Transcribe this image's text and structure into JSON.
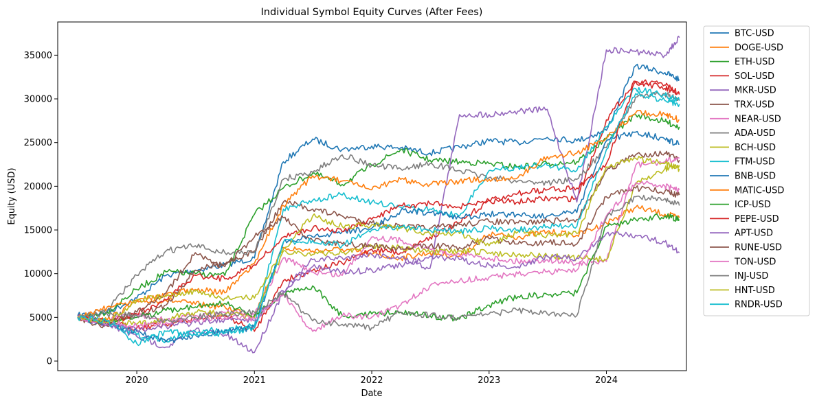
{
  "chart_data": {
    "type": "line",
    "title": "Individual Symbol Equity Curves (After Fees)",
    "xlabel": "Date",
    "ylabel": "Equity (USD)",
    "x_ticks": [
      "2020",
      "2021",
      "2022",
      "2023",
      "2024"
    ],
    "y_ticks": [
      "0",
      "5000",
      "10000",
      "15000",
      "20000",
      "25000",
      "30000",
      "35000"
    ],
    "xlim": [
      "2019-04-30",
      "2024-09-06"
    ],
    "ylim": [
      -1100,
      38800
    ],
    "grid": false,
    "legend_position": "outside-right",
    "x": [
      "2019-07-01",
      "2019-10-01",
      "2020-01-01",
      "2020-04-01",
      "2020-07-01",
      "2020-10-01",
      "2021-01-01",
      "2021-04-01",
      "2021-07-01",
      "2021-10-01",
      "2022-01-01",
      "2022-04-01",
      "2022-07-01",
      "2022-10-01",
      "2023-01-01",
      "2023-04-01",
      "2023-07-01",
      "2023-10-01",
      "2024-01-01",
      "2024-04-01",
      "2024-07-01",
      "2024-08-15"
    ],
    "series": [
      {
        "name": "BTC-USD",
        "color": "#1f77b4",
        "values": [
          5200,
          5600,
          7200,
          9800,
          10400,
          11000,
          11800,
          22800,
          25400,
          24200,
          24600,
          24400,
          23800,
          24500,
          25200,
          25000,
          25600,
          25200,
          26400,
          33800,
          33000,
          32200
        ]
      },
      {
        "name": "DOGE-USD",
        "color": "#ff7f0e",
        "values": [
          5000,
          4700,
          6800,
          7000,
          6500,
          6200,
          5200,
          13000,
          12600,
          12800,
          12200,
          11800,
          12400,
          12000,
          14500,
          14200,
          14800,
          14400,
          15800,
          17600,
          16800,
          16400
        ]
      },
      {
        "name": "ETH-USD",
        "color": "#2ca02c",
        "values": [
          5000,
          5600,
          8200,
          10200,
          10000,
          9800,
          16800,
          19800,
          21500,
          20200,
          22400,
          24200,
          23000,
          22800,
          22600,
          22200,
          22600,
          22800,
          25400,
          28200,
          27400,
          26800
        ]
      },
      {
        "name": "SOL-USD",
        "color": "#d62728",
        "values": [
          5000,
          4400,
          3800,
          4200,
          4800,
          5200,
          3400,
          9200,
          10400,
          11200,
          12800,
          12400,
          14200,
          15800,
          18400,
          18200,
          18600,
          18600,
          27600,
          32000,
          31200,
          30500
        ]
      },
      {
        "name": "MKR-USD",
        "color": "#9467bd",
        "values": [
          4900,
          4200,
          2800,
          1600,
          3600,
          3000,
          1000,
          8000,
          11600,
          11800,
          12200,
          11800,
          10600,
          28200,
          28200,
          28600,
          28800,
          18200,
          35600,
          35400,
          35000,
          37000
        ]
      },
      {
        "name": "TRX-USD",
        "color": "#8c564b",
        "values": [
          4800,
          4000,
          5200,
          6400,
          10400,
          11200,
          12600,
          18200,
          17400,
          16600,
          15800,
          15400,
          15200,
          15600,
          16000,
          15800,
          16000,
          16200,
          21800,
          23600,
          23800,
          23000
        ]
      },
      {
        "name": "NEAR-USD",
        "color": "#e377c2",
        "values": [
          5000,
          4600,
          5400,
          4600,
          5200,
          5600,
          5200,
          11800,
          10200,
          9800,
          14200,
          13800,
          12800,
          12200,
          11800,
          11400,
          11600,
          11200,
          11400,
          22400,
          22800,
          23200
        ]
      },
      {
        "name": "ADA-USD",
        "color": "#7f7f7f",
        "values": [
          5000,
          5800,
          9800,
          12600,
          13200,
          12400,
          12400,
          20800,
          21600,
          23600,
          22400,
          22000,
          22600,
          21800,
          21000,
          20600,
          20400,
          20800,
          24400,
          30200,
          30600,
          29800
        ]
      },
      {
        "name": "BCH-USD",
        "color": "#bcbd22",
        "values": [
          5000,
          4600,
          4200,
          4800,
          5600,
          5400,
          5000,
          12600,
          12200,
          12400,
          13200,
          13000,
          12400,
          12600,
          12400,
          12200,
          12000,
          11800,
          11600,
          20200,
          22000,
          22400
        ]
      },
      {
        "name": "FTM-USD",
        "color": "#17becf",
        "values": [
          5000,
          4500,
          3000,
          2400,
          3400,
          3600,
          4000,
          17400,
          18400,
          19000,
          18200,
          17600,
          17400,
          16600,
          21800,
          22200,
          22400,
          21800,
          26800,
          31200,
          30400,
          29800
        ]
      },
      {
        "name": "BNB-USD",
        "color": "#1f77b4",
        "values": [
          5000,
          4200,
          3400,
          2200,
          3000,
          3400,
          3800,
          13600,
          14200,
          14800,
          15200,
          17200,
          17000,
          16400,
          16800,
          16800,
          16600,
          17000,
          25200,
          26200,
          25400,
          24800
        ]
      },
      {
        "name": "MATIC-USD",
        "color": "#ff7f0e",
        "values": [
          5000,
          6200,
          7000,
          7600,
          8200,
          7800,
          11200,
          17800,
          21200,
          20600,
          19600,
          20800,
          20200,
          20600,
          20800,
          21000,
          23400,
          23800,
          25600,
          28400,
          28200,
          27600
        ]
      },
      {
        "name": "ICP-USD",
        "color": "#2ca02c",
        "values": [
          5000,
          4400,
          5000,
          5800,
          6200,
          6600,
          5200,
          7600,
          8600,
          5200,
          5400,
          5600,
          5200,
          4800,
          6400,
          7400,
          7600,
          7800,
          15400,
          16200,
          16600,
          16200
        ]
      },
      {
        "name": "PEPE-USD",
        "color": "#d62728",
        "values": [
          5000,
          4400,
          5400,
          7000,
          9800,
          9400,
          11000,
          14200,
          15200,
          14800,
          16200,
          17800,
          18000,
          17600,
          18400,
          19200,
          19600,
          19800,
          22600,
          32000,
          31600,
          30600
        ]
      },
      {
        "name": "APT-USD",
        "color": "#9467bd",
        "values": [
          5000,
          4200,
          3600,
          4000,
          4400,
          4800,
          4600,
          8000,
          10800,
          10200,
          10400,
          11000,
          12000,
          11600,
          11000,
          10800,
          12000,
          11800,
          14600,
          14400,
          13600,
          12400
        ]
      },
      {
        "name": "RUNE-USD",
        "color": "#8c564b",
        "values": [
          5000,
          4400,
          5600,
          7800,
          12400,
          10800,
          14200,
          16400,
          13800,
          13400,
          13200,
          12800,
          13200,
          13000,
          14000,
          13400,
          13600,
          13400,
          18800,
          19800,
          19400,
          19000
        ]
      },
      {
        "name": "TON-USD",
        "color": "#e377c2",
        "values": [
          5000,
          4400,
          4000,
          4400,
          4800,
          5000,
          4800,
          7600,
          3400,
          5200,
          5000,
          6400,
          8600,
          9200,
          9600,
          10000,
          10200,
          10400,
          16600,
          20400,
          20000,
          19600
        ]
      },
      {
        "name": "INJ-USD",
        "color": "#7f7f7f",
        "values": [
          5000,
          5400,
          5200,
          4600,
          5000,
          5400,
          5600,
          7800,
          4600,
          4200,
          3800,
          5600,
          5200,
          5000,
          5400,
          5800,
          5400,
          5200,
          16400,
          18800,
          18600,
          17800
        ]
      },
      {
        "name": "HNT-USD",
        "color": "#bcbd22",
        "values": [
          5000,
          4400,
          7000,
          7400,
          8000,
          7200,
          7200,
          12800,
          16600,
          15400,
          15600,
          15200,
          14600,
          14600,
          13200,
          14800,
          14400,
          14600,
          22200,
          23200,
          22600,
          22000
        ]
      },
      {
        "name": "RNDR-USD",
        "color": "#17becf",
        "values": [
          5000,
          4600,
          2000,
          3400,
          3000,
          3200,
          3800,
          13600,
          13800,
          13200,
          15000,
          15400,
          15000,
          14800,
          15200,
          15000,
          15400,
          15400,
          24200,
          30600,
          29800,
          29400
        ]
      }
    ]
  }
}
